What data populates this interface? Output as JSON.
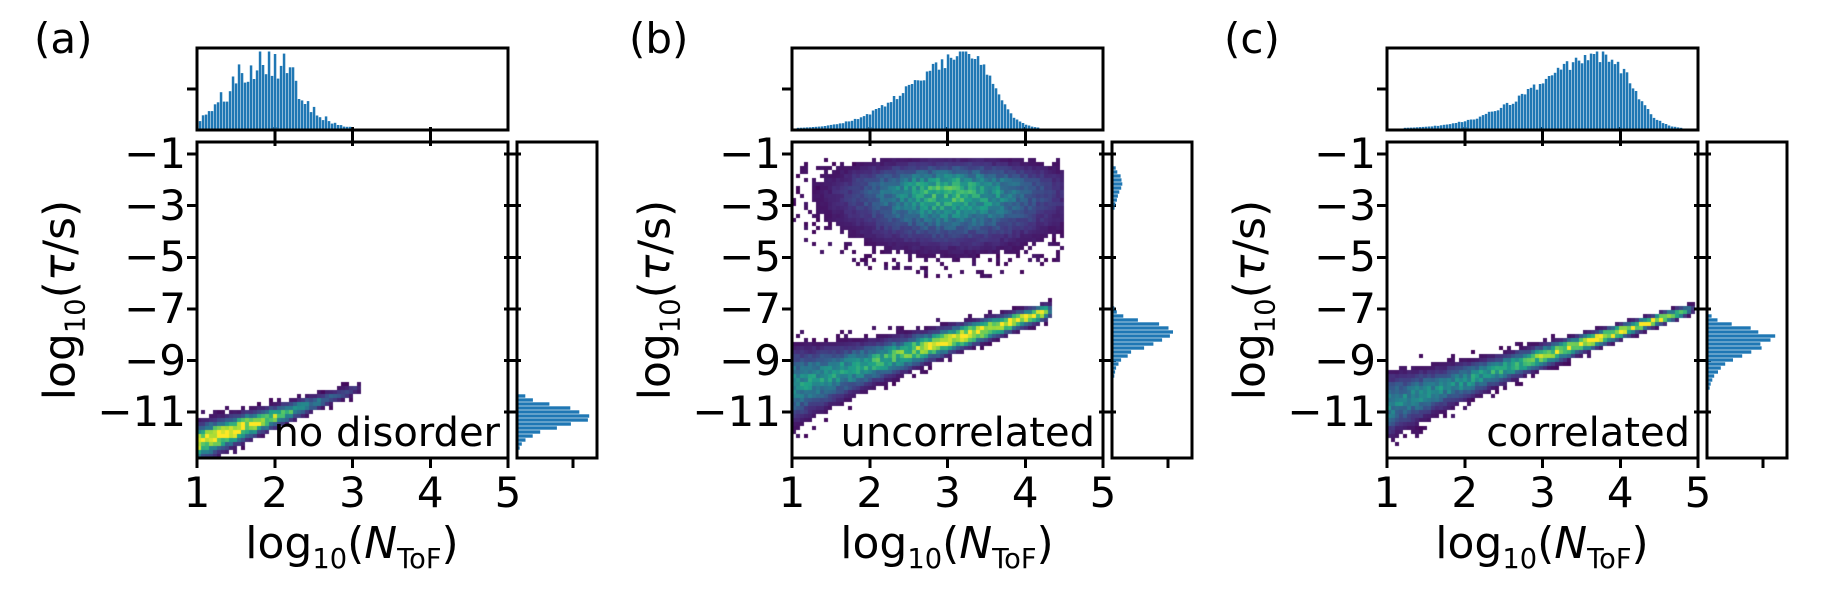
{
  "figure": {
    "background": "#ffffff",
    "spine_color": "#000000",
    "text_color": "#000000",
    "hist_color": "#1f77b4",
    "colormap": "viridis",
    "colormap_low": "#440154",
    "colormap_high": "#fde725"
  },
  "axes": {
    "x_range": [
      1,
      5
    ],
    "y_range": [
      -0.53,
      -12.78
    ],
    "x_ticks": [
      {
        "v": 1,
        "label": "1"
      },
      {
        "v": 2,
        "label": "2"
      },
      {
        "v": 3,
        "label": "3"
      },
      {
        "v": 4,
        "label": "4"
      },
      {
        "v": 5,
        "label": "5"
      }
    ],
    "y_ticks": [
      {
        "v": -1,
        "label": "−1"
      },
      {
        "v": -3,
        "label": "−3"
      },
      {
        "v": -5,
        "label": "−5"
      },
      {
        "v": -7,
        "label": "−7"
      },
      {
        "v": -9,
        "label": "−9"
      },
      {
        "v": -11,
        "label": "−11"
      }
    ],
    "xlabel_parts": {
      "func": "log",
      "func_sub": "10",
      "open": "(",
      "var": "N",
      "var_sub": "ToF",
      "close": ")"
    },
    "ylabel_parts": {
      "func": "log",
      "func_sub": "10",
      "open": "(",
      "var": "τ",
      "close": "/s)"
    }
  },
  "chart_data": [
    {
      "type": "heatmap",
      "label": "(a)",
      "annotation": "no disorder",
      "xlabel": "log10(N_ToF)",
      "ylabel": "log10(τ/s)",
      "x_range": [
        1,
        5
      ],
      "y_range": [
        -0.53,
        -12.78
      ],
      "top_hist": {
        "type": "histogram",
        "orientation": "vertical",
        "x_range": [
          1.0,
          2.95
        ],
        "peak": 1.87,
        "sigma_left": 0.42,
        "sigma_right": 0.38,
        "peak_height_rel": 0.96,
        "jitter": 0.3
      },
      "right_hist": {
        "type": "histogram",
        "orientation": "horizontal",
        "jitter": 0.15,
        "components": [
          {
            "center": -11.1,
            "rel_height": 0.95,
            "sigma_up": 0.33,
            "sigma_down": 0.45,
            "y_range": [
              -10.3,
              -12.6
            ]
          }
        ]
      },
      "clusters": [
        {
          "type": "diagonal-streak",
          "x_range": [
            1.0,
            3.17
          ],
          "y_start": -12.2,
          "slope": 1.02,
          "width_sigma_start": 0.34,
          "width_decay": 0.7,
          "width_sigma_min": 0.06,
          "amp_base": 0.05,
          "amp_peak_x": 1.4,
          "amp_peak_sigma": 0.78
        }
      ]
    },
    {
      "type": "heatmap",
      "label": "(b)",
      "annotation": "uncorrelated",
      "xlabel": "log10(N_ToF)",
      "ylabel": "log10(τ/s)",
      "x_range": [
        1,
        5
      ],
      "y_range": [
        -0.53,
        -12.78
      ],
      "top_hist": {
        "type": "histogram",
        "orientation": "vertical",
        "x_range": [
          1.0,
          4.2
        ],
        "peak": 3.26,
        "sigma_left": 0.72,
        "sigma_right": 0.3,
        "peak_height_rel": 0.95,
        "jitter": 0.1
      },
      "right_hist": {
        "type": "histogram",
        "orientation": "horizontal",
        "jitter": 0.12,
        "components": [
          {
            "center": -7.78,
            "rel_height": 0.72,
            "sigma_up": 0.28,
            "sigma_down": 0.62,
            "y_range": [
              -6.75,
              -10.8
            ]
          },
          {
            "center": -2.1,
            "rel_height": 0.11,
            "sigma_up": 0.35,
            "sigma_down": 0.5,
            "y_range": [
              -1.42,
              -3.3
            ]
          }
        ]
      },
      "clusters": [
        {
          "type": "blob",
          "center_x": 3.05,
          "center_y": -2.4,
          "sigma_x": 0.8,
          "sigma_y_up": 0.62,
          "sigma_y_down": 1.18,
          "amp": 0.62,
          "y_top_cut": -1.22,
          "x_range": [
            1.0,
            4.5
          ]
        },
        {
          "type": "diagonal-streak",
          "x_range": [
            1.0,
            4.37
          ],
          "y_start": -10.0,
          "slope": 0.88,
          "width_sigma_start": 0.74,
          "width_decay": 0.62,
          "width_sigma_min": 0.07,
          "amp_base": 0.48,
          "amp_peak_x": 3.55,
          "amp_peak_sigma": 0.85
        }
      ]
    },
    {
      "type": "heatmap",
      "label": "(c)",
      "annotation": "correlated",
      "xlabel": "log10(N_ToF)",
      "ylabel": "log10(τ/s)",
      "x_range": [
        1,
        5
      ],
      "y_range": [
        -0.53,
        -12.78
      ],
      "top_hist": {
        "type": "histogram",
        "orientation": "vertical",
        "x_range": [
          1.0,
          4.8
        ],
        "peak": 3.8,
        "sigma_left": 0.85,
        "sigma_right": 0.32,
        "peak_height_rel": 0.95,
        "jitter": 0.1
      },
      "right_hist": {
        "type": "histogram",
        "orientation": "horizontal",
        "jitter": 0.12,
        "components": [
          {
            "center": -8.02,
            "rel_height": 0.8,
            "sigma_up": 0.3,
            "sigma_down": 0.72,
            "y_range": [
              -6.85,
              -11.3
            ]
          }
        ]
      },
      "clusters": [
        {
          "type": "diagonal-streak",
          "x_range": [
            1.0,
            4.97
          ],
          "y_start": -10.75,
          "slope": 0.955,
          "width_sigma_start": 0.64,
          "width_decay": 0.6,
          "width_sigma_min": 0.045,
          "amp_base": 0.42,
          "amp_peak_x": 3.95,
          "amp_peak_sigma": 0.95
        }
      ]
    }
  ]
}
